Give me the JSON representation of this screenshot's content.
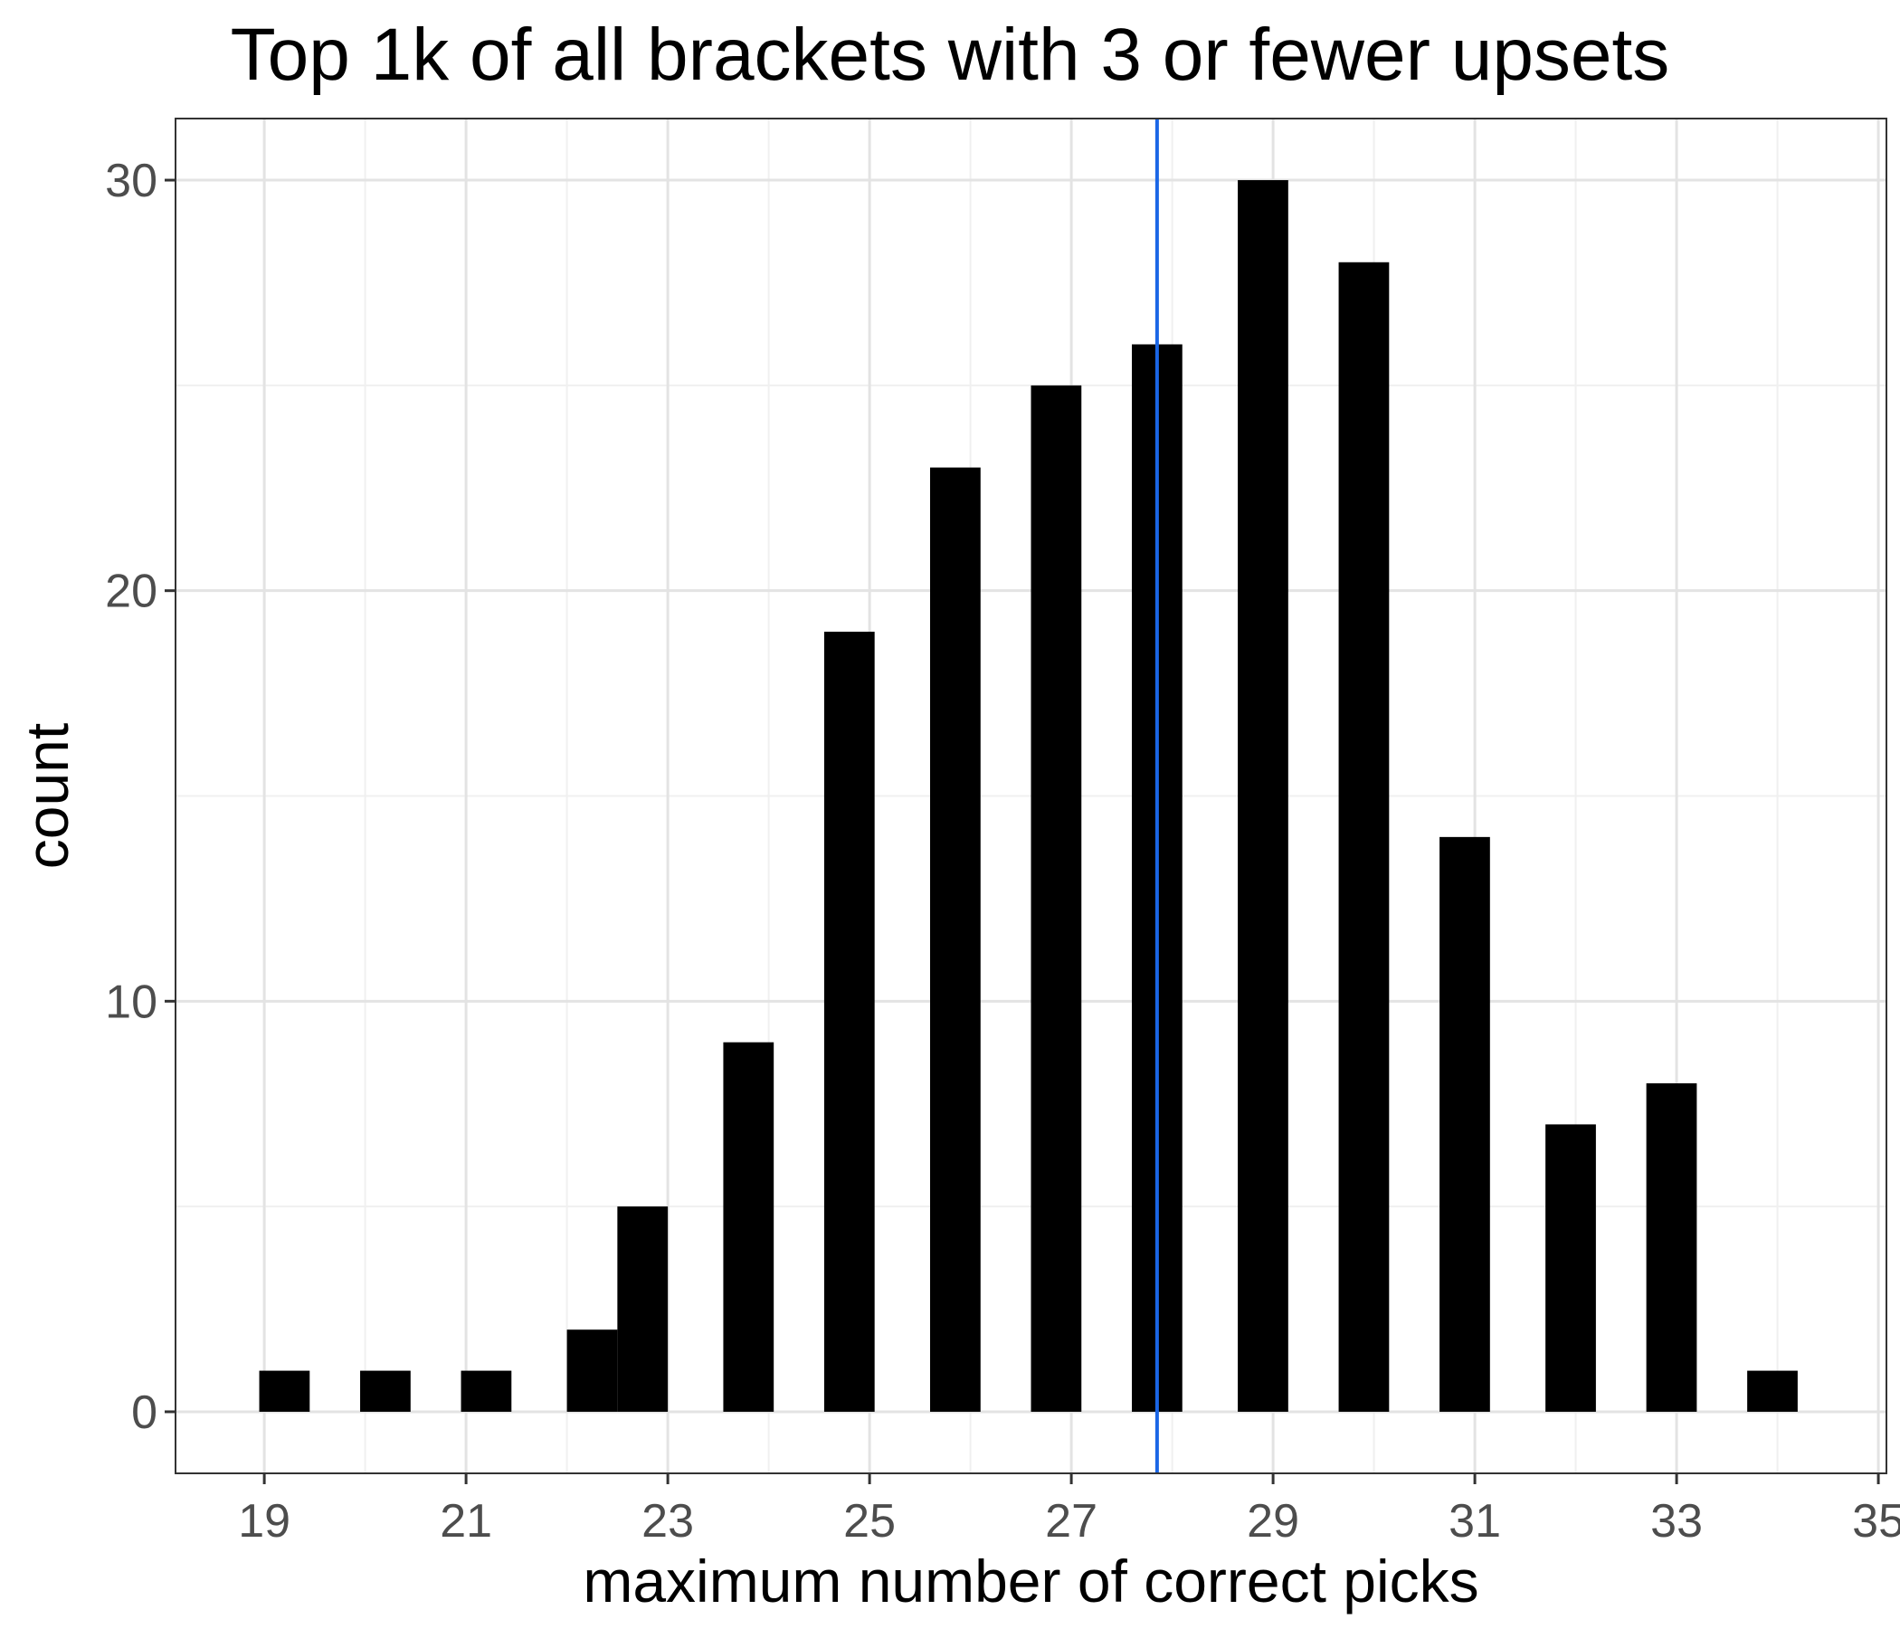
{
  "chart_data": {
    "type": "bar",
    "title": "Top 1k of all brackets with 3 or fewer upsets",
    "xlabel": "maximum number of correct picks",
    "ylabel": "count",
    "x": [
      19.2,
      20.2,
      21.2,
      22.25,
      22.75,
      23.8,
      24.8,
      25.85,
      26.85,
      27.85,
      28.9,
      29.9,
      30.9,
      31.95,
      32.95,
      33.95
    ],
    "values": [
      1,
      1,
      1,
      2,
      5,
      9,
      19,
      23,
      25,
      26,
      30,
      28,
      14,
      7,
      8,
      1
    ],
    "bar_width": 0.5,
    "xlim": [
      18.12,
      35.08
    ],
    "ylim": [
      -1.5,
      31.5
    ],
    "x_ticks": [
      "19",
      "21",
      "23",
      "25",
      "27",
      "29",
      "31",
      "33",
      "35"
    ],
    "y_ticks": [
      "0",
      "10",
      "20",
      "30"
    ],
    "reference_line": {
      "x": 27.85,
      "color": "#1a66e6"
    },
    "bar_color": "#000000",
    "grid": true,
    "theme": "bw"
  }
}
